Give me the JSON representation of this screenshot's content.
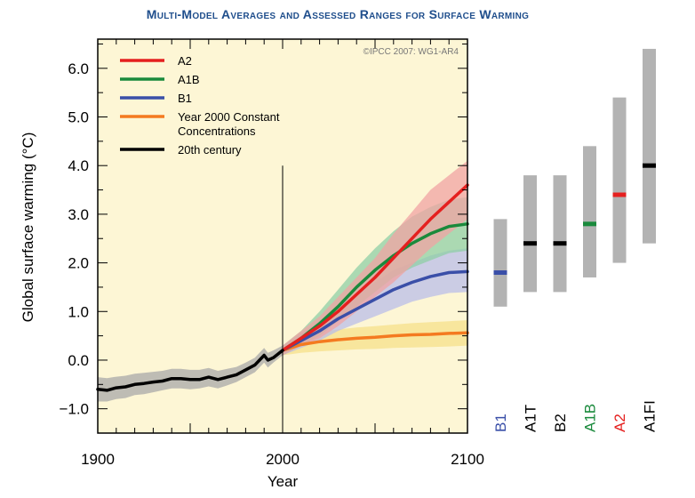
{
  "title": "Multi-Model Averages and Assessed Ranges for Surface Warming",
  "credit": "©IPCC 2007: WG1-AR4",
  "chart_data": {
    "type": "line",
    "xlabel": "Year",
    "ylabel": "Global surface warming (°C)",
    "xlim": [
      1900,
      2100
    ],
    "ylim": [
      -1.5,
      6.6
    ],
    "x_ticks": [
      1900,
      2000,
      2100
    ],
    "y_ticks": [
      -1.0,
      0.0,
      1.0,
      2.0,
      3.0,
      4.0,
      5.0,
      6.0
    ],
    "y_tick_labels": [
      "−1.0",
      "0.0",
      "1.0",
      "2.0",
      "3.0",
      "4.0",
      "5.0",
      "6.0"
    ],
    "marker_year": 2000,
    "legend_position": "top-left",
    "series": [
      {
        "name": "20th century",
        "color": "#000000",
        "band_color": "#a8a8a8",
        "x": [
          1900,
          1905,
          1910,
          1915,
          1920,
          1925,
          1930,
          1935,
          1940,
          1945,
          1950,
          1955,
          1960,
          1965,
          1970,
          1975,
          1980,
          1985,
          1990,
          1992,
          1995,
          2000
        ],
        "y": [
          -0.6,
          -0.62,
          -0.57,
          -0.55,
          -0.5,
          -0.48,
          -0.45,
          -0.43,
          -0.38,
          -0.38,
          -0.4,
          -0.4,
          -0.35,
          -0.4,
          -0.35,
          -0.3,
          -0.2,
          -0.1,
          0.1,
          0.0,
          0.05,
          0.2
        ],
        "lower": [
          -0.85,
          -0.85,
          -0.8,
          -0.78,
          -0.72,
          -0.7,
          -0.66,
          -0.62,
          -0.58,
          -0.58,
          -0.6,
          -0.58,
          -0.54,
          -0.58,
          -0.52,
          -0.45,
          -0.35,
          -0.25,
          -0.05,
          -0.15,
          -0.05,
          0.1
        ],
        "upper": [
          -0.35,
          -0.37,
          -0.34,
          -0.32,
          -0.28,
          -0.26,
          -0.24,
          -0.22,
          -0.18,
          -0.18,
          -0.2,
          -0.2,
          -0.16,
          -0.22,
          -0.18,
          -0.14,
          -0.05,
          0.05,
          0.25,
          0.15,
          0.2,
          0.3
        ]
      },
      {
        "name": "A2",
        "color": "#e5201f",
        "band_color": "#f0a3a3",
        "x": [
          2000,
          2010,
          2020,
          2030,
          2040,
          2050,
          2060,
          2070,
          2080,
          2090,
          2100
        ],
        "y": [
          0.2,
          0.45,
          0.7,
          1.0,
          1.35,
          1.7,
          2.1,
          2.5,
          2.9,
          3.25,
          3.6
        ],
        "lower": [
          0.1,
          0.3,
          0.45,
          0.7,
          1.0,
          1.3,
          1.6,
          1.95,
          2.3,
          2.6,
          2.9
        ],
        "upper": [
          0.3,
          0.6,
          0.9,
          1.3,
          1.7,
          2.1,
          2.6,
          3.05,
          3.5,
          3.8,
          4.1
        ]
      },
      {
        "name": "A1B",
        "color": "#1a8a3c",
        "band_color": "#8fcfa5",
        "x": [
          2000,
          2010,
          2020,
          2030,
          2040,
          2050,
          2060,
          2070,
          2080,
          2090,
          2100
        ],
        "y": [
          0.2,
          0.45,
          0.75,
          1.1,
          1.5,
          1.85,
          2.15,
          2.4,
          2.6,
          2.75,
          2.8
        ],
        "lower": [
          0.1,
          0.3,
          0.5,
          0.8,
          1.1,
          1.4,
          1.7,
          1.9,
          2.05,
          2.2,
          2.25
        ],
        "upper": [
          0.3,
          0.6,
          1.0,
          1.45,
          1.9,
          2.3,
          2.65,
          2.95,
          3.15,
          3.3,
          3.35
        ]
      },
      {
        "name": "B1",
        "color": "#3a4fa8",
        "band_color": "#b9bde8",
        "x": [
          2000,
          2010,
          2020,
          2030,
          2040,
          2050,
          2060,
          2070,
          2080,
          2090,
          2100
        ],
        "y": [
          0.2,
          0.4,
          0.6,
          0.85,
          1.05,
          1.25,
          1.45,
          1.6,
          1.72,
          1.8,
          1.82
        ],
        "lower": [
          0.1,
          0.25,
          0.4,
          0.6,
          0.75,
          0.9,
          1.05,
          1.2,
          1.3,
          1.38,
          1.4
        ],
        "upper": [
          0.3,
          0.55,
          0.8,
          1.1,
          1.35,
          1.6,
          1.85,
          2.0,
          2.15,
          2.25,
          2.3
        ]
      },
      {
        "name": "Year 2000 Constant Concentrations",
        "legend_lines": [
          "Year 2000 Constant",
          "Concentrations"
        ],
        "color": "#f47a20",
        "band_color": "#f5e08a",
        "x": [
          2000,
          2010,
          2020,
          2030,
          2040,
          2050,
          2060,
          2070,
          2080,
          2090,
          2100
        ],
        "y": [
          0.2,
          0.32,
          0.38,
          0.42,
          0.45,
          0.47,
          0.5,
          0.52,
          0.53,
          0.55,
          0.56
        ],
        "lower": [
          0.1,
          0.15,
          0.18,
          0.2,
          0.22,
          0.23,
          0.25,
          0.26,
          0.27,
          0.28,
          0.3
        ],
        "upper": [
          0.3,
          0.5,
          0.58,
          0.63,
          0.67,
          0.7,
          0.73,
          0.76,
          0.78,
          0.8,
          0.82
        ]
      }
    ],
    "legend_order": [
      "A2",
      "A1B",
      "B1",
      "Year 2000 Constant Concentrations",
      "20th century"
    ],
    "scenario_ranges": [
      {
        "label": "B1",
        "label_color": "#3a4fa8",
        "low": 1.1,
        "high": 2.9,
        "best": 1.8,
        "best_color": "#3a4fa8"
      },
      {
        "label": "A1T",
        "label_color": "#000000",
        "low": 1.4,
        "high": 3.8,
        "best": 2.4,
        "best_color": "#000000"
      },
      {
        "label": "B2",
        "label_color": "#000000",
        "low": 1.4,
        "high": 3.8,
        "best": 2.4,
        "best_color": "#000000"
      },
      {
        "label": "A1B",
        "label_color": "#1a8a3c",
        "low": 1.7,
        "high": 4.4,
        "best": 2.8,
        "best_color": "#1a8a3c"
      },
      {
        "label": "A2",
        "label_color": "#e5201f",
        "low": 2.0,
        "high": 5.4,
        "best": 3.4,
        "best_color": "#e5201f"
      },
      {
        "label": "A1FI",
        "label_color": "#000000",
        "low": 2.4,
        "high": 6.4,
        "best": 4.0,
        "best_color": "#000000"
      }
    ],
    "range_bar_color": "#b3b3b3",
    "plot_background": "#fdf6d5"
  }
}
